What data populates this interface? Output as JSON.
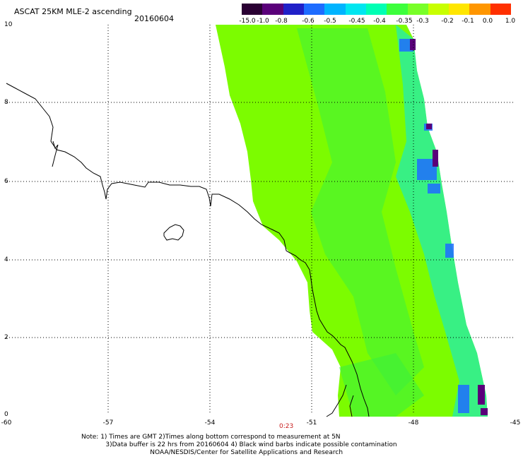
{
  "header": {
    "title": "ASCAT 25KM MLE-2 ascending",
    "date": "20160604"
  },
  "colorbar": {
    "labels": [
      "-15.0",
      "-1.0",
      "-0.8",
      "-0.6",
      "-0.5",
      "-0.45",
      "-0.4",
      "-0.35",
      "-0.3",
      "-0.2",
      "-0.1",
      "0.0",
      "1.0"
    ],
    "colors": [
      "#2a0033",
      "#5a007a",
      "#2020c8",
      "#1e6cff",
      "#00b4ff",
      "#00e6f0",
      "#00ffb4",
      "#3cff3c",
      "#78ff28",
      "#c8ff00",
      "#ffe600",
      "#ff9600",
      "#ff3000"
    ]
  },
  "axes": {
    "x_ticks": [
      "-60",
      "-57",
      "-54",
      "-51",
      "-48",
      "-45"
    ],
    "y_ticks": [
      "10",
      "8",
      "6",
      "4",
      "2",
      "0"
    ],
    "grid": "dotted"
  },
  "time_label": "0:23",
  "footer": {
    "line1": "Note: 1) Times are GMT 2)Times along bottom correspond to measurement at 5N",
    "line2": "3)Data buffer is 22 hrs from 20160604 4) Black wind barbs indicate possible contamination",
    "line3": "NOAA/NESDIS/Center for Satellite Applications and Research"
  },
  "swath": {
    "dominant_color": "#7cfc00",
    "secondary_color": "#3cf03c",
    "edge_color": "#00e6f0",
    "edge_blue": "#1e6cff",
    "edge_dark": "#5a007a"
  }
}
